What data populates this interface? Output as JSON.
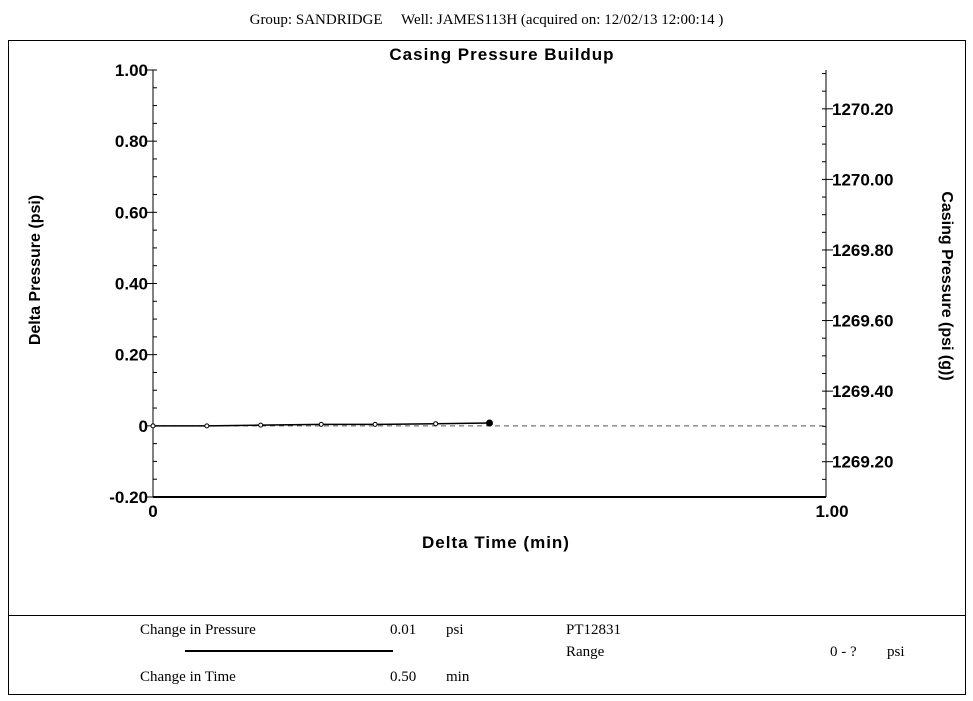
{
  "header": {
    "group": "Group: SANDRIDGE",
    "well": "Well: JAMES113H (acquired on: 12/02/13 12:00:14 )"
  },
  "chart_data": {
    "type": "scatter",
    "title": "Casing Pressure Buildup",
    "xlabel": "Delta Time (min)",
    "ylabel": "Delta Pressure (psi)",
    "y2label": "Casing Pressure (psi (g))",
    "xlim": [
      0,
      1.0
    ],
    "ylim": [
      -0.2,
      1.0
    ],
    "y2lim": [
      1269.1,
      1270.31
    ],
    "x_ticks": [
      "0",
      "1.00"
    ],
    "y_ticks": [
      {
        "value": 1.0,
        "label": "1.00"
      },
      {
        "value": 0.8,
        "label": "0.80"
      },
      {
        "value": 0.6,
        "label": "0.60"
      },
      {
        "value": 0.4,
        "label": "0.40"
      },
      {
        "value": 0.2,
        "label": "0.20"
      },
      {
        "value": 0.0,
        "label": "0"
      },
      {
        "value": -0.2,
        "label": "-0.20"
      }
    ],
    "y2_ticks": [
      {
        "value": 1270.2,
        "label": "1270.20"
      },
      {
        "value": 1270.0,
        "label": "1270.00"
      },
      {
        "value": 1269.8,
        "label": "1269.80"
      },
      {
        "value": 1269.6,
        "label": "1269.60"
      },
      {
        "value": 1269.4,
        "label": "1269.40"
      },
      {
        "value": 1269.2,
        "label": "1269.20"
      }
    ],
    "series": [
      {
        "x": [
          0.0,
          0.08,
          0.16,
          0.25,
          0.33,
          0.42,
          0.5
        ],
        "y": [
          0.0,
          0.0,
          0.002,
          0.004,
          0.004,
          0.006,
          0.008
        ]
      }
    ],
    "reference_line": {
      "y": 0.0,
      "style": "dashed"
    },
    "grid": false,
    "legend": "none"
  },
  "footer": {
    "pressure_label": "Change in Pressure",
    "pressure_value": "0.01",
    "pressure_unit": "psi",
    "time_label": "Change in Time",
    "time_value": "0.50",
    "time_unit": "min",
    "gauge_id": "PT12831",
    "range_label": "Range",
    "range_value": "0 - ?",
    "range_unit": "psi"
  }
}
